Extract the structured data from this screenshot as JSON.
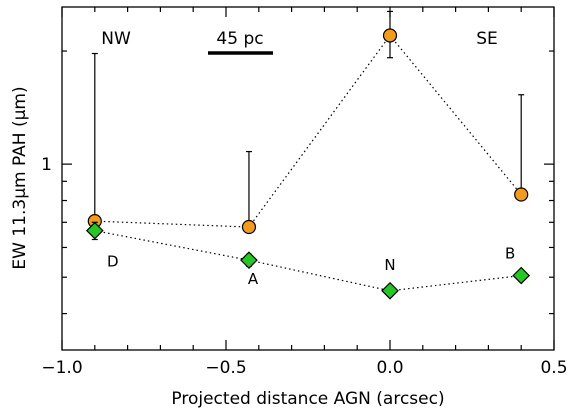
{
  "chart_data": {
    "type": "scatter",
    "xlabel": "Projected distance AGN (arcsec)",
    "ylabel": "EW 11.3μm PAH (μm)",
    "xlim": [
      -1.0,
      0.5
    ],
    "ylim": [
      0.32,
      2.62
    ],
    "yscale": "log",
    "x_ticks": [
      -1.0,
      -0.5,
      0.0,
      0.5
    ],
    "x_tick_labels": [
      "−1.0",
      "−0.5",
      "0.0",
      "0.5"
    ],
    "y_ticks": [
      1
    ],
    "y_tick_labels": [
      "1"
    ],
    "grid": false,
    "annotations": [
      {
        "text": "NW",
        "position": "top-left"
      },
      {
        "text": "SE",
        "position": "top-right"
      },
      {
        "text": "45 pc",
        "position": "top",
        "scale_bar": true
      }
    ],
    "series": [
      {
        "marker": "circle",
        "color": "#f39c1a",
        "x": [
          -0.9,
          -0.43,
          0.0,
          0.4
        ],
        "y": [
          0.705,
          0.68,
          2.2,
          0.83
        ],
        "yerr_low": [
          0.705,
          0.68,
          1.92,
          0.83
        ],
        "yerr_high": [
          1.97,
          1.08,
          2.55,
          1.53
        ]
      },
      {
        "marker": "diamond",
        "color": "#22c922",
        "x": [
          -0.9,
          -0.43,
          0.0,
          0.4
        ],
        "y": [
          0.665,
          0.555,
          0.46,
          0.505
        ],
        "yerr_low": [
          0.63,
          0.535,
          0.45,
          0.495
        ],
        "yerr_high": [
          0.7,
          0.575,
          0.47,
          0.515
        ],
        "point_labels": [
          "D",
          "A",
          "N",
          "B"
        ]
      }
    ]
  }
}
